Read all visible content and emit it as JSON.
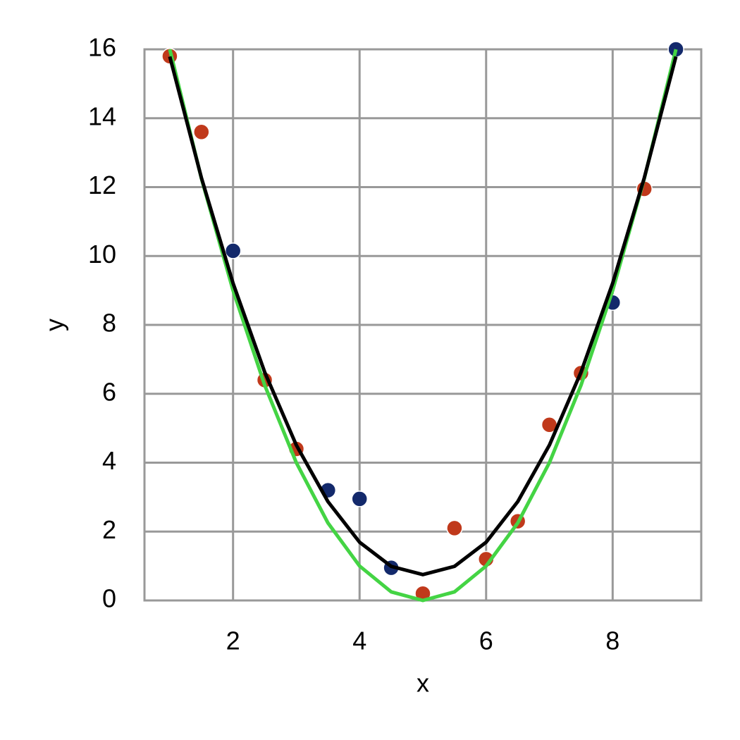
{
  "chart_data": {
    "type": "scatter",
    "x_label": "x",
    "y_label": "y",
    "xlim": [
      0.6,
      9.4
    ],
    "ylim": [
      0,
      16
    ],
    "xticks": [
      2,
      4,
      6,
      8
    ],
    "yticks": [
      0,
      2,
      4,
      6,
      8,
      10,
      12,
      14,
      16
    ],
    "grid": true,
    "series": [
      {
        "type": "scatter",
        "color": "#c0391b",
        "x": [
          1,
          1.5,
          2.5,
          3,
          5,
          5.5,
          6,
          6.5,
          7,
          7.5,
          8.5
        ],
        "values": [
          15.8,
          13.6,
          6.4,
          4.4,
          0.2,
          2.1,
          1.2,
          2.3,
          5.1,
          6.6,
          11.95
        ]
      },
      {
        "type": "scatter",
        "color": "#13296b",
        "x": [
          2,
          3.5,
          4,
          4.5,
          8,
          9
        ],
        "values": [
          10.15,
          3.2,
          2.95,
          0.95,
          8.65,
          16.0
        ]
      },
      {
        "type": "line",
        "color": "#44d444",
        "x": [
          1,
          1.5,
          2,
          2.5,
          3,
          3.5,
          4,
          4.5,
          5,
          5.5,
          6,
          6.5,
          7,
          7.5,
          8,
          8.5,
          9
        ],
        "values": [
          16,
          12.25,
          9,
          6.25,
          4,
          2.25,
          1,
          0.25,
          0,
          0.25,
          1,
          2.25,
          4,
          6.25,
          9,
          12.25,
          16
        ]
      },
      {
        "type": "line",
        "color": "#000000",
        "x": [
          1,
          1.5,
          2,
          2.5,
          3,
          3.5,
          4,
          4.5,
          5,
          5.5,
          6,
          6.5,
          7,
          7.5,
          8,
          8.5,
          9
        ],
        "values": [
          15.79,
          12.27,
          9.21,
          6.63,
          4.51,
          2.87,
          1.69,
          0.99,
          0.75,
          0.99,
          1.69,
          2.87,
          4.51,
          6.63,
          9.21,
          12.27,
          15.79
        ]
      }
    ]
  }
}
